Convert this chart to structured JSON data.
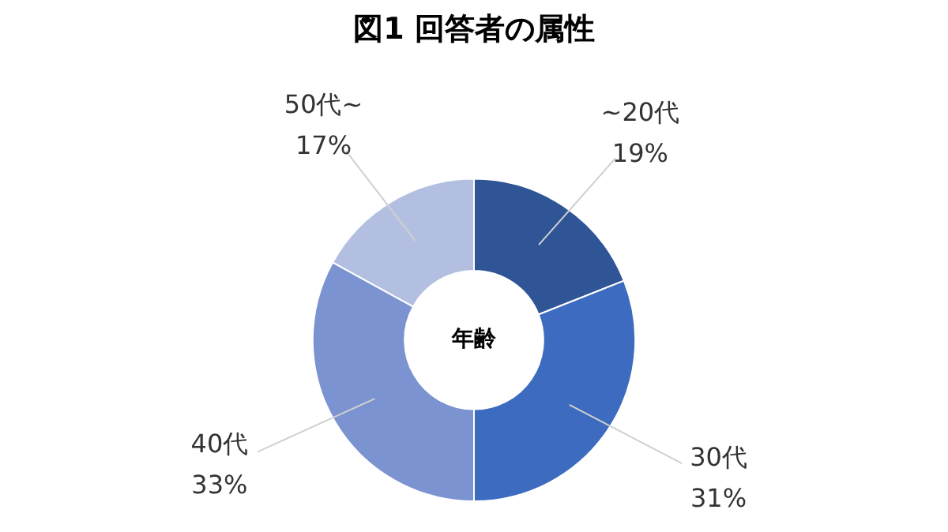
{
  "chart_data": {
    "type": "donut",
    "title": "図1 回答者の属性",
    "categories": [
      "~20代",
      "30代",
      "40代",
      "50代~"
    ],
    "values": [
      19,
      31,
      33,
      17
    ],
    "colors": [
      "#2f5597",
      "#3d6bbf",
      "#7b93d0",
      "#b3bfe0"
    ],
    "data_labels": true,
    "value_labels": [
      "19%",
      "31%",
      "33%",
      "17%"
    ],
    "annotations": [
      "年齢"
    ]
  }
}
